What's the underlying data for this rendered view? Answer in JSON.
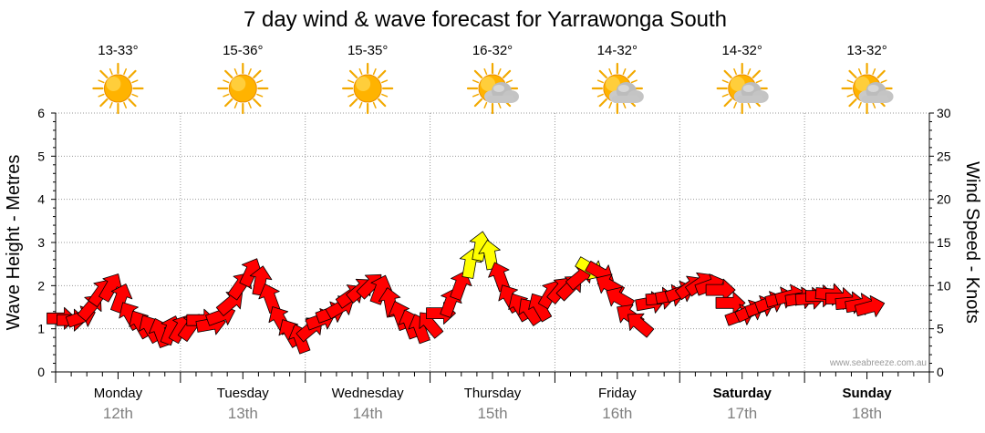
{
  "title": "7 day wind & wave forecast for Yarrawonga South",
  "left_axis_label": "Wave Height - Metres",
  "right_axis_label": "Wind Speed - Knots",
  "watermark": "www.seabreeze.com.au",
  "days": [
    {
      "name": "Monday",
      "date": "12th",
      "temp": "13-33°",
      "weather": "sunny-icon",
      "bold": false
    },
    {
      "name": "Tuesday",
      "date": "13th",
      "temp": "15-36°",
      "weather": "sunny-icon",
      "bold": false
    },
    {
      "name": "Wednesday",
      "date": "14th",
      "temp": "15-35°",
      "weather": "sunny-icon",
      "bold": false
    },
    {
      "name": "Thursday",
      "date": "15th",
      "temp": "16-32°",
      "weather": "partly-cloudy-icon",
      "bold": false
    },
    {
      "name": "Friday",
      "date": "16th",
      "temp": "14-32°",
      "weather": "partly-cloudy-icon",
      "bold": false
    },
    {
      "name": "Saturday",
      "date": "17th",
      "temp": "14-32°",
      "weather": "partly-cloudy-icon",
      "bold": true
    },
    {
      "name": "Sunday",
      "date": "18th",
      "temp": "13-32°",
      "weather": "partly-cloudy-icon",
      "bold": true
    }
  ],
  "colors": {
    "arrow_normal": "#ff0000",
    "arrow_strong": "#ffff00",
    "arrow_stroke": "#000000",
    "grid": "#999999",
    "watermark": "#999999",
    "date_text": "#808080"
  },
  "chart_data": {
    "type": "line",
    "left_axis": {
      "label": "Wave Height - Metres",
      "min": 0,
      "max": 6,
      "ticks": [
        0,
        1,
        2,
        3,
        4,
        5,
        6
      ]
    },
    "right_axis": {
      "label": "Wind Speed - Knots",
      "min": 0,
      "max": 30,
      "ticks": [
        0,
        5,
        10,
        15,
        20,
        25,
        30
      ]
    },
    "x_unit": "days from start of Monday 12th",
    "grid": true,
    "wind_series": {
      "name": "Wind",
      "points": [
        {
          "x": 0.04,
          "speed": 6.2,
          "dir": 270
        },
        {
          "x": 0.12,
          "speed": 6.0,
          "dir": 270
        },
        {
          "x": 0.2,
          "speed": 6.3,
          "dir": 250
        },
        {
          "x": 0.28,
          "speed": 7.5,
          "dir": 220
        },
        {
          "x": 0.36,
          "speed": 9.2,
          "dir": 215
        },
        {
          "x": 0.44,
          "speed": 9.8,
          "dir": 210
        },
        {
          "x": 0.52,
          "speed": 8.5,
          "dir": 200
        },
        {
          "x": 0.6,
          "speed": 6.5,
          "dir": 150
        },
        {
          "x": 0.68,
          "speed": 5.5,
          "dir": 150
        },
        {
          "x": 0.76,
          "speed": 5.0,
          "dir": 150
        },
        {
          "x": 0.84,
          "speed": 4.5,
          "dir": 160
        },
        {
          "x": 0.92,
          "speed": 4.8,
          "dir": 200
        },
        {
          "x": 1.0,
          "speed": 5.0,
          "dir": 210
        },
        {
          "x": 1.08,
          "speed": 5.2,
          "dir": 215
        },
        {
          "x": 1.16,
          "speed": 6.0,
          "dir": 270
        },
        {
          "x": 1.24,
          "speed": 5.5,
          "dir": 260
        },
        {
          "x": 1.32,
          "speed": 6.5,
          "dir": 250
        },
        {
          "x": 1.4,
          "speed": 8.0,
          "dir": 230
        },
        {
          "x": 1.48,
          "speed": 10.0,
          "dir": 215
        },
        {
          "x": 1.56,
          "speed": 11.5,
          "dir": 205
        },
        {
          "x": 1.64,
          "speed": 10.5,
          "dir": 190
        },
        {
          "x": 1.72,
          "speed": 8.5,
          "dir": 160
        },
        {
          "x": 1.8,
          "speed": 6.0,
          "dir": 150
        },
        {
          "x": 1.88,
          "speed": 4.5,
          "dir": 150
        },
        {
          "x": 1.96,
          "speed": 3.8,
          "dir": 160
        },
        {
          "x": 2.04,
          "speed": 5.0,
          "dir": 230
        },
        {
          "x": 2.12,
          "speed": 6.0,
          "dir": 250
        },
        {
          "x": 2.2,
          "speed": 6.8,
          "dir": 250
        },
        {
          "x": 2.28,
          "speed": 7.5,
          "dir": 240
        },
        {
          "x": 2.36,
          "speed": 8.8,
          "dir": 235
        },
        {
          "x": 2.44,
          "speed": 9.5,
          "dir": 230
        },
        {
          "x": 2.52,
          "speed": 10.0,
          "dir": 225
        },
        {
          "x": 2.6,
          "speed": 9.5,
          "dir": 200
        },
        {
          "x": 2.68,
          "speed": 8.0,
          "dir": 170
        },
        {
          "x": 2.76,
          "speed": 6.5,
          "dir": 160
        },
        {
          "x": 2.84,
          "speed": 5.5,
          "dir": 160
        },
        {
          "x": 2.92,
          "speed": 5.0,
          "dir": 160
        },
        {
          "x": 3.0,
          "speed": 5.5,
          "dir": 140
        },
        {
          "x": 3.08,
          "speed": 6.8,
          "dir": 270
        },
        {
          "x": 3.16,
          "speed": 8.0,
          "dir": 200
        },
        {
          "x": 3.24,
          "speed": 10.0,
          "dir": 200
        },
        {
          "x": 3.32,
          "speed": 12.5,
          "dir": 190
        },
        {
          "x": 3.4,
          "speed": 14.5,
          "dir": 190
        },
        {
          "x": 3.48,
          "speed": 13.5,
          "dir": 170
        },
        {
          "x": 3.56,
          "speed": 11.0,
          "dir": 160
        },
        {
          "x": 3.64,
          "speed": 8.5,
          "dir": 150
        },
        {
          "x": 3.72,
          "speed": 7.5,
          "dir": 150
        },
        {
          "x": 3.8,
          "speed": 7.0,
          "dir": 145
        },
        {
          "x": 3.88,
          "speed": 7.5,
          "dir": 150
        },
        {
          "x": 3.96,
          "speed": 9.0,
          "dir": 210
        },
        {
          "x": 4.04,
          "speed": 9.5,
          "dir": 220
        },
        {
          "x": 4.12,
          "speed": 9.8,
          "dir": 225
        },
        {
          "x": 4.2,
          "speed": 11.0,
          "dir": 230
        },
        {
          "x": 4.28,
          "speed": 12.0,
          "dir": 300
        },
        {
          "x": 4.36,
          "speed": 11.5,
          "dir": 300
        },
        {
          "x": 4.44,
          "speed": 10.0,
          "dir": 120
        },
        {
          "x": 4.52,
          "speed": 8.5,
          "dir": 120
        },
        {
          "x": 4.6,
          "speed": 6.5,
          "dir": 125
        },
        {
          "x": 4.68,
          "speed": 5.5,
          "dir": 130
        },
        {
          "x": 4.76,
          "speed": 8.0,
          "dir": 260
        },
        {
          "x": 4.84,
          "speed": 8.5,
          "dir": 265
        },
        {
          "x": 4.92,
          "speed": 8.8,
          "dir": 260
        },
        {
          "x": 5.0,
          "speed": 9.2,
          "dir": 250
        },
        {
          "x": 5.08,
          "speed": 9.8,
          "dir": 235
        },
        {
          "x": 5.16,
          "speed": 10.2,
          "dir": 235
        },
        {
          "x": 5.24,
          "speed": 10.0,
          "dir": 250
        },
        {
          "x": 5.32,
          "speed": 9.5,
          "dir": 270
        },
        {
          "x": 5.4,
          "speed": 8.0,
          "dir": 270
        },
        {
          "x": 5.48,
          "speed": 6.5,
          "dir": 250
        },
        {
          "x": 5.56,
          "speed": 7.0,
          "dir": 245
        },
        {
          "x": 5.64,
          "speed": 7.5,
          "dir": 250
        },
        {
          "x": 5.72,
          "speed": 8.0,
          "dir": 250
        },
        {
          "x": 5.8,
          "speed": 8.5,
          "dir": 255
        },
        {
          "x": 5.88,
          "speed": 8.8,
          "dir": 255
        },
        {
          "x": 5.96,
          "speed": 8.5,
          "dir": 260
        },
        {
          "x": 6.04,
          "speed": 8.5,
          "dir": 265
        },
        {
          "x": 6.12,
          "speed": 8.8,
          "dir": 270
        },
        {
          "x": 6.2,
          "speed": 9.0,
          "dir": 275
        },
        {
          "x": 6.28,
          "speed": 8.5,
          "dir": 270
        },
        {
          "x": 6.36,
          "speed": 8.0,
          "dir": 265
        },
        {
          "x": 6.44,
          "speed": 7.8,
          "dir": 260
        },
        {
          "x": 6.52,
          "speed": 7.5,
          "dir": 255
        }
      ]
    }
  }
}
